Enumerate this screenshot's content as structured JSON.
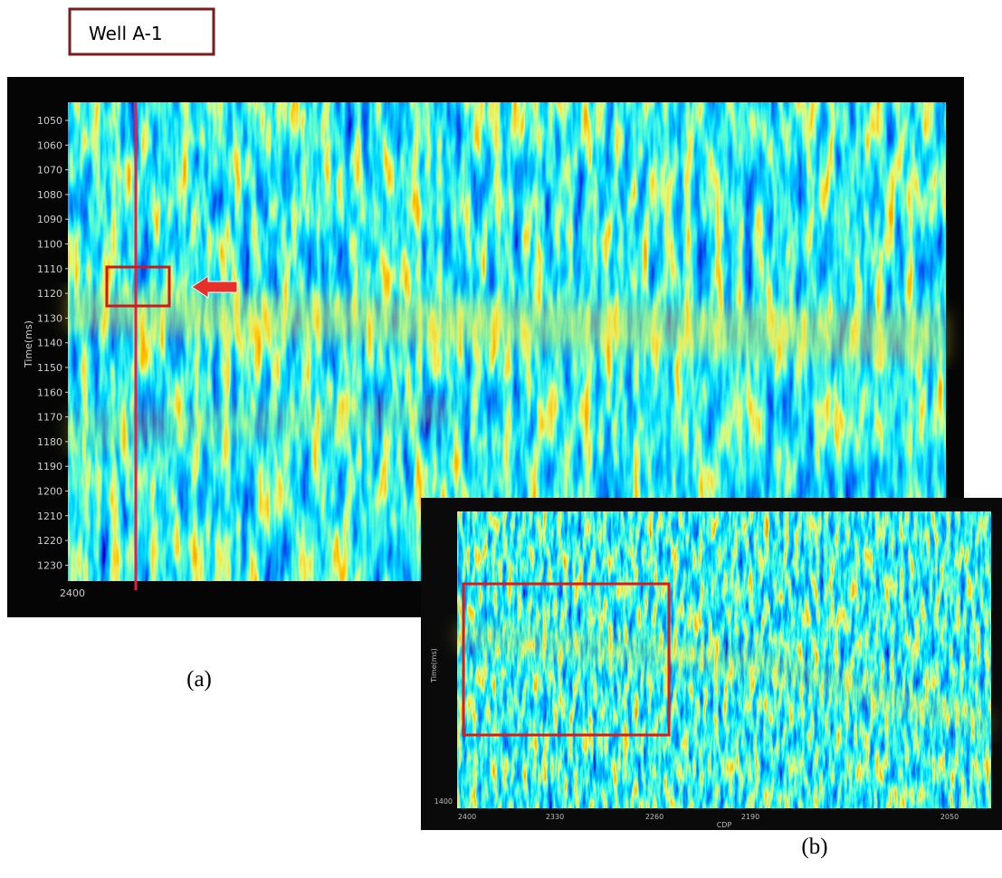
{
  "label_box": "Well A-1",
  "panel_a": {
    "y_axis_label": "Time(ms)",
    "y_ticks": [
      1050,
      1060,
      1070,
      1080,
      1090,
      1100,
      1110,
      1120,
      1130,
      1140,
      1150,
      1160,
      1170,
      1180,
      1190,
      1200,
      1210,
      1220,
      1230
    ],
    "x_tick": 2400,
    "caption": "(a)"
  },
  "panel_b": {
    "y_axis_label": "Time(ms)",
    "y_tick": 1400,
    "x_axis_label": "CDP",
    "x_ticks": [
      2400,
      2330,
      2260,
      2190,
      2050
    ],
    "caption": "(b)"
  }
}
